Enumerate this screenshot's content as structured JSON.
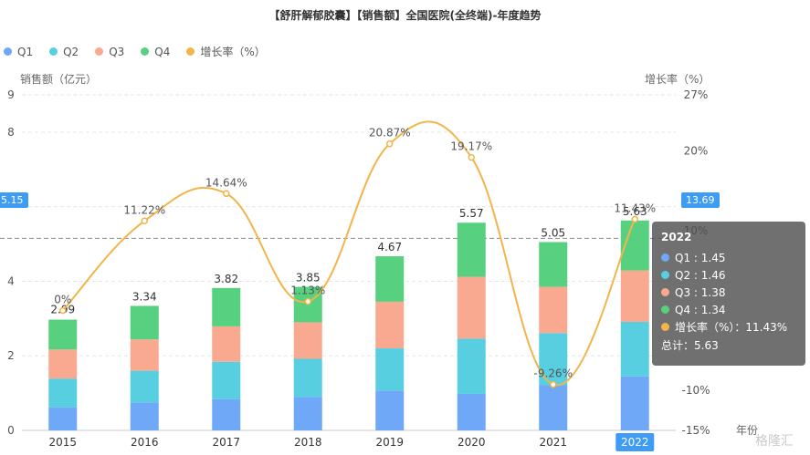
{
  "title": "【舒肝解郁胶囊】【销售额】全国医院(全终端)-年度趋势",
  "left_axis_name": "销售额（亿元）",
  "right_axis_name": "增长率（%）",
  "x_axis_name": "年份",
  "crosshair": {
    "left_value": "5.15",
    "right_value": "13.69"
  },
  "tooltip": {
    "title": "2022",
    "rows": [
      {
        "label": "Q1 : 1.45",
        "color": "#6fa8f7"
      },
      {
        "label": "Q2 : 1.46",
        "color": "#58cfe0"
      },
      {
        "label": "Q3 : 1.38",
        "color": "#f8a990"
      },
      {
        "label": "Q4 : 1.34",
        "color": "#57d17f"
      },
      {
        "label": "增长率（%）：11.43%",
        "color": "#f2b44b"
      }
    ],
    "total": "总计：5.63"
  },
  "watermark": "格隆汇",
  "chart_data": {
    "type": "bar",
    "stacked": true,
    "categories": [
      "2015",
      "2016",
      "2017",
      "2018",
      "2019",
      "2020",
      "2021",
      "2022"
    ],
    "series": [
      {
        "name": "Q1",
        "color": "#6fa8f7",
        "values": [
          0.62,
          0.75,
          0.84,
          0.9,
          1.07,
          0.98,
          1.22,
          1.45
        ]
      },
      {
        "name": "Q2",
        "color": "#58cfe0",
        "values": [
          0.77,
          0.85,
          1.0,
          1.02,
          1.13,
          1.48,
          1.39,
          1.46
        ]
      },
      {
        "name": "Q3",
        "color": "#f8a990",
        "values": [
          0.78,
          0.84,
          0.95,
          0.98,
          1.25,
          1.66,
          1.24,
          1.38
        ]
      },
      {
        "name": "Q4",
        "color": "#57d17f",
        "values": [
          0.8,
          0.9,
          1.03,
          0.95,
          1.22,
          1.45,
          1.2,
          1.34
        ]
      },
      {
        "name": "增长率（%）",
        "color": "#f2b44b",
        "type": "line",
        "axis": "right",
        "values": [
          0,
          11.22,
          14.64,
          1.13,
          20.87,
          19.17,
          -9.26,
          11.43
        ]
      }
    ],
    "totals": [
      2.99,
      3.34,
      3.82,
      3.85,
      4.67,
      5.57,
      5.05,
      5.63
    ],
    "total_labels": [
      "2.99",
      "3.34",
      "3.82",
      "3.85",
      "4.67",
      "5.57",
      "5.05",
      "5.63"
    ],
    "growth_labels": [
      "0%",
      "11.22%",
      "14.64%",
      "1.13%",
      "20.87%",
      "19.17%",
      "-9.26%",
      "11.43%"
    ],
    "y_left": {
      "min": 0,
      "max": 9,
      "ticks": [
        0,
        2,
        4,
        6,
        8,
        9
      ],
      "tick_labels": [
        "0",
        "2",
        "4",
        "",
        "8",
        "9"
      ]
    },
    "y_right": {
      "min": -15,
      "max": 27,
      "ticks": [
        -15,
        -10,
        10,
        20,
        27
      ],
      "tick_labels": [
        "-15%",
        "-10%",
        "10%",
        "20%",
        "27%"
      ]
    },
    "highlight_category": "2022",
    "legend": "top-left",
    "grid": true
  }
}
